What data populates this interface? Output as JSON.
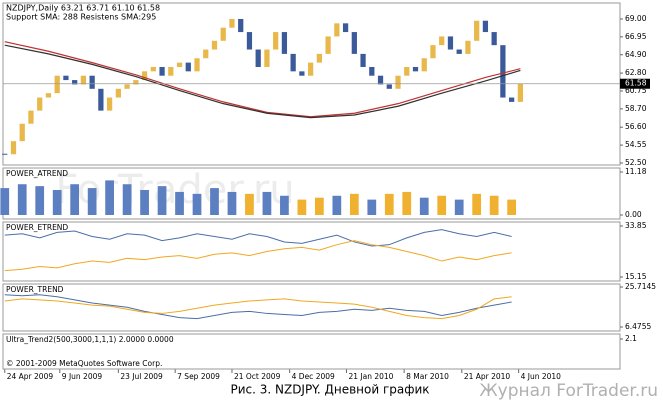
{
  "chart_data": [
    {
      "type": "candlestick",
      "title": "NZDJPY,Daily  63.21 63.71 61.10 61.58",
      "subtitle": "Support SMA: 288 Resistens SMA:295",
      "up_color": "#e8b84a",
      "down_color": "#3a5a9a",
      "values": [
        53.5,
        55,
        57,
        58.5,
        60,
        60.5,
        62.5,
        62,
        61.5,
        62.5,
        61,
        58.5,
        60,
        61,
        61.5,
        62,
        63,
        63.5,
        62.5,
        63.5,
        64,
        63,
        64.5,
        65.5,
        66.5,
        68,
        69,
        67.5,
        65.5,
        63.5,
        65.5,
        67.5,
        65,
        63,
        62.5,
        64,
        65,
        67,
        68.5,
        67.5,
        65,
        63.5,
        62.5,
        61.5,
        61,
        62.5,
        63.5,
        63,
        64.5,
        66,
        67,
        65.5,
        65,
        66.5,
        68.8,
        67.5,
        66,
        60,
        59.5,
        61.58
      ],
      "series": [
        {
          "color": "#c03030",
          "x": [
            0,
            5,
            10,
            15,
            20,
            25,
            30,
            35,
            40,
            45,
            50,
            55,
            59
          ],
          "values": [
            66.4,
            65.3,
            64,
            62.6,
            61,
            59.5,
            58.3,
            57.8,
            58.2,
            59.3,
            60.8,
            62.3,
            63.3
          ]
        },
        {
          "color": "#303030",
          "x": [
            0,
            5,
            10,
            15,
            20,
            25,
            30,
            35,
            40,
            45,
            50,
            55,
            59
          ],
          "values": [
            66,
            65,
            63.8,
            62.4,
            60.8,
            59.3,
            58.2,
            57.7,
            58,
            59,
            60.5,
            61.9,
            63.1
          ]
        }
      ],
      "xlim": [
        -0.2,
        70.4
      ],
      "xticks": [
        {
          "value": 0,
          "label": "24 Apr 2009"
        },
        {
          "value": 6.3,
          "label": "9 Jun 2009"
        },
        {
          "value": 13,
          "label": "23 Jul 2009"
        },
        {
          "value": 19.5,
          "label": "7 Sep 2009"
        },
        {
          "value": 26,
          "label": "21 Oct 2009"
        },
        {
          "value": 32.6,
          "label": "4 Dec 2009"
        },
        {
          "value": 39.1,
          "label": "21 Jan 2010"
        },
        {
          "value": 45.7,
          "label": "8 Mar 2010"
        },
        {
          "value": 52.3,
          "label": "21 Apr 2010"
        },
        {
          "value": 58.8,
          "label": "4 Jun 2010"
        }
      ],
      "ylim": [
        52.27,
        70.83
      ],
      "yticks": [
        {
          "value": 69,
          "label": "69.00"
        },
        66.95,
        {
          "value": 64.9,
          "label": "64.90"
        },
        {
          "value": 62.8,
          "label": "62.80"
        },
        60.75,
        {
          "value": 58.7,
          "label": "58.70"
        },
        {
          "value": 56.6,
          "label": "56.60"
        },
        54.55,
        {
          "value": 52.5,
          "label": "52.50"
        }
      ]
    },
    {
      "type": "bar",
      "label": "POWER_ATREND",
      "x": [
        0,
        2,
        4,
        6,
        8,
        10,
        12,
        14,
        16,
        18,
        20,
        22,
        24,
        26,
        28,
        30,
        32,
        34,
        36,
        38,
        40,
        42,
        44,
        46,
        48,
        50,
        52,
        54,
        56,
        58
      ],
      "values": [
        7,
        8,
        7.5,
        6.5,
        8,
        7,
        9,
        8,
        6.5,
        7.5,
        6,
        5.5,
        7,
        6,
        5.5,
        6,
        5,
        4,
        4.5,
        5,
        5.5,
        4,
        5.5,
        6,
        4.5,
        5,
        4,
        5.5,
        5,
        4
      ],
      "colors": [
        "#5b7fc0",
        "#5b7fc0",
        "#5b7fc0",
        "#5b7fc0",
        "#5b7fc0",
        "#5b7fc0",
        "#5b7fc0",
        "#5b7fc0",
        "#5b7fc0",
        "#5b7fc0",
        "#5b7fc0",
        "#5b7fc0",
        "#5b7fc0",
        "#5b7fc0",
        "#f0b030",
        "#5b7fc0",
        "#5b7fc0",
        "#f0b030",
        "#f0b030",
        "#5b7fc0",
        "#f0b030",
        "#5b7fc0",
        "#f0b030",
        "#f0b030",
        "#5b7fc0",
        "#f0b030",
        "#5b7fc0",
        "#f0b030",
        "#f0b030",
        "#f0b030"
      ],
      "ylim": [
        -1.04,
        12.22
      ],
      "yticks": [
        11.18,
        {
          "value": 0,
          "label": "0.00"
        }
      ]
    },
    {
      "type": "line",
      "label": "POWER_ETREND",
      "x": [
        0,
        2,
        4,
        6,
        8,
        10,
        12,
        14,
        16,
        18,
        20,
        22,
        24,
        26,
        28,
        30,
        32,
        34,
        36,
        38,
        40,
        42,
        44,
        46,
        48,
        50,
        52,
        54,
        56,
        58
      ],
      "series": [
        {
          "color": "#4a6ea8",
          "values": [
            30.5,
            31,
            29.5,
            31.5,
            32,
            30,
            29,
            31,
            30.5,
            28.5,
            29.5,
            31,
            30,
            29,
            31,
            30,
            28,
            27.5,
            29,
            30.5,
            28,
            26.5,
            27,
            29.5,
            31.5,
            32.5,
            31,
            30,
            31.5,
            30
          ]
        },
        {
          "color": "#f0a820",
          "values": [
            17.5,
            18,
            19,
            18.5,
            20,
            21,
            20.5,
            22,
            21.5,
            22.5,
            23,
            22,
            23.5,
            24,
            23,
            24.5,
            25.5,
            26,
            25,
            27,
            28.5,
            27,
            26,
            24.5,
            23,
            21,
            22.5,
            21.5,
            23,
            24
          ]
        }
      ],
      "ylim": [
        13.68,
        35.32
      ],
      "yticks": [
        33.85,
        15.15
      ]
    },
    {
      "type": "line",
      "label": "POWER_TREND",
      "x": [
        0,
        2,
        4,
        6,
        8,
        10,
        12,
        14,
        16,
        18,
        20,
        22,
        24,
        26,
        28,
        30,
        32,
        34,
        36,
        38,
        40,
        42,
        44,
        46,
        48,
        50,
        52,
        54,
        56,
        58
      ],
      "series": [
        {
          "color": "#4a6ea8",
          "values": [
            22,
            21.5,
            22,
            21,
            19.5,
            18,
            17,
            16,
            14,
            12.5,
            11,
            10.5,
            12,
            13.5,
            14,
            13,
            12.5,
            12,
            13.5,
            14,
            15,
            14.5,
            15.5,
            14.5,
            14,
            12,
            13.5,
            15.5,
            17,
            18.5
          ]
        },
        {
          "color": "#f0a820",
          "values": [
            19,
            20,
            19.5,
            19,
            18,
            17,
            16.5,
            15,
            13.5,
            13,
            14,
            15.5,
            17,
            18,
            19,
            19.5,
            20,
            19,
            18.5,
            18,
            17.5,
            16,
            14,
            12,
            11,
            10.5,
            12,
            15,
            20,
            21
          ]
        }
      ],
      "ylim": [
        4.55,
        27.16
      ],
      "yticks": [
        25.7145,
        6.4755
      ]
    },
    {
      "type": "empty",
      "label": "Ultra_Trend2(500,3000,1,1,1) 2.0000 0.0000",
      "copyright": "© 2001-2009 MetaQuotes Software Corp.",
      "ylim": [
        0.9,
        2.3
      ],
      "yticks": [
        2.1
      ]
    }
  ],
  "watermark": "ForTrader.ru",
  "caption": "Рис. 3. NZDJPY. Дневной график",
  "footer_watermark": "Журнал ForTrader.ru"
}
